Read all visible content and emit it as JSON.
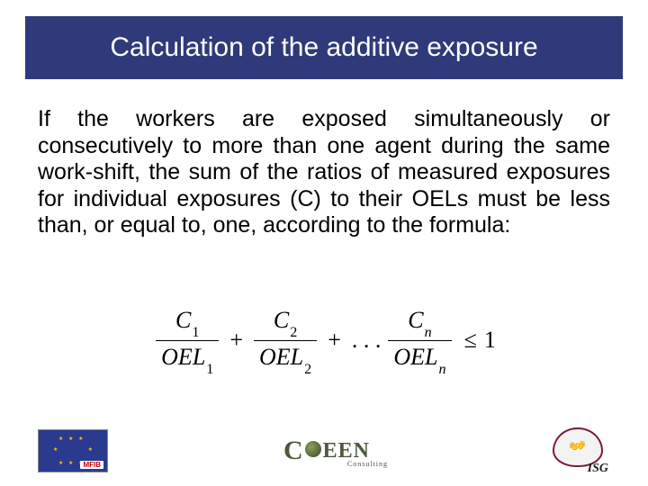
{
  "title": "Calculation of the additive exposure",
  "body": "If the workers are exposed simultaneously or consecutively to more than one agent during the same work-shift, the sum of the ratios of measured exposures for individual exposures (C) to their OELs must be less than, or equal to, one, according to the formula:",
  "formula": {
    "terms": [
      {
        "num_var": "C",
        "num_sub": "1",
        "den_var": "OEL",
        "den_sub": "1"
      },
      {
        "num_var": "C",
        "num_sub": "2",
        "den_var": "OEL",
        "den_sub": "2"
      },
      {
        "num_var": "C",
        "num_sub": "n",
        "den_var": "OEL",
        "den_sub": "n"
      }
    ],
    "plus": "+",
    "dots": ". . .",
    "comparator": "≤",
    "rhs": "1"
  },
  "logos": {
    "mfib_tag": "MFIB",
    "ceen_c": "C",
    "ceen_rest": "EEN",
    "ceen_sub": "Consulting",
    "isg": "ISG"
  },
  "colors": {
    "title_bg": "#2e3a7a",
    "title_fg": "#ffffff",
    "text": "#000000",
    "isg_border": "#7a1a3f",
    "ceen": "#4a5a3a"
  }
}
